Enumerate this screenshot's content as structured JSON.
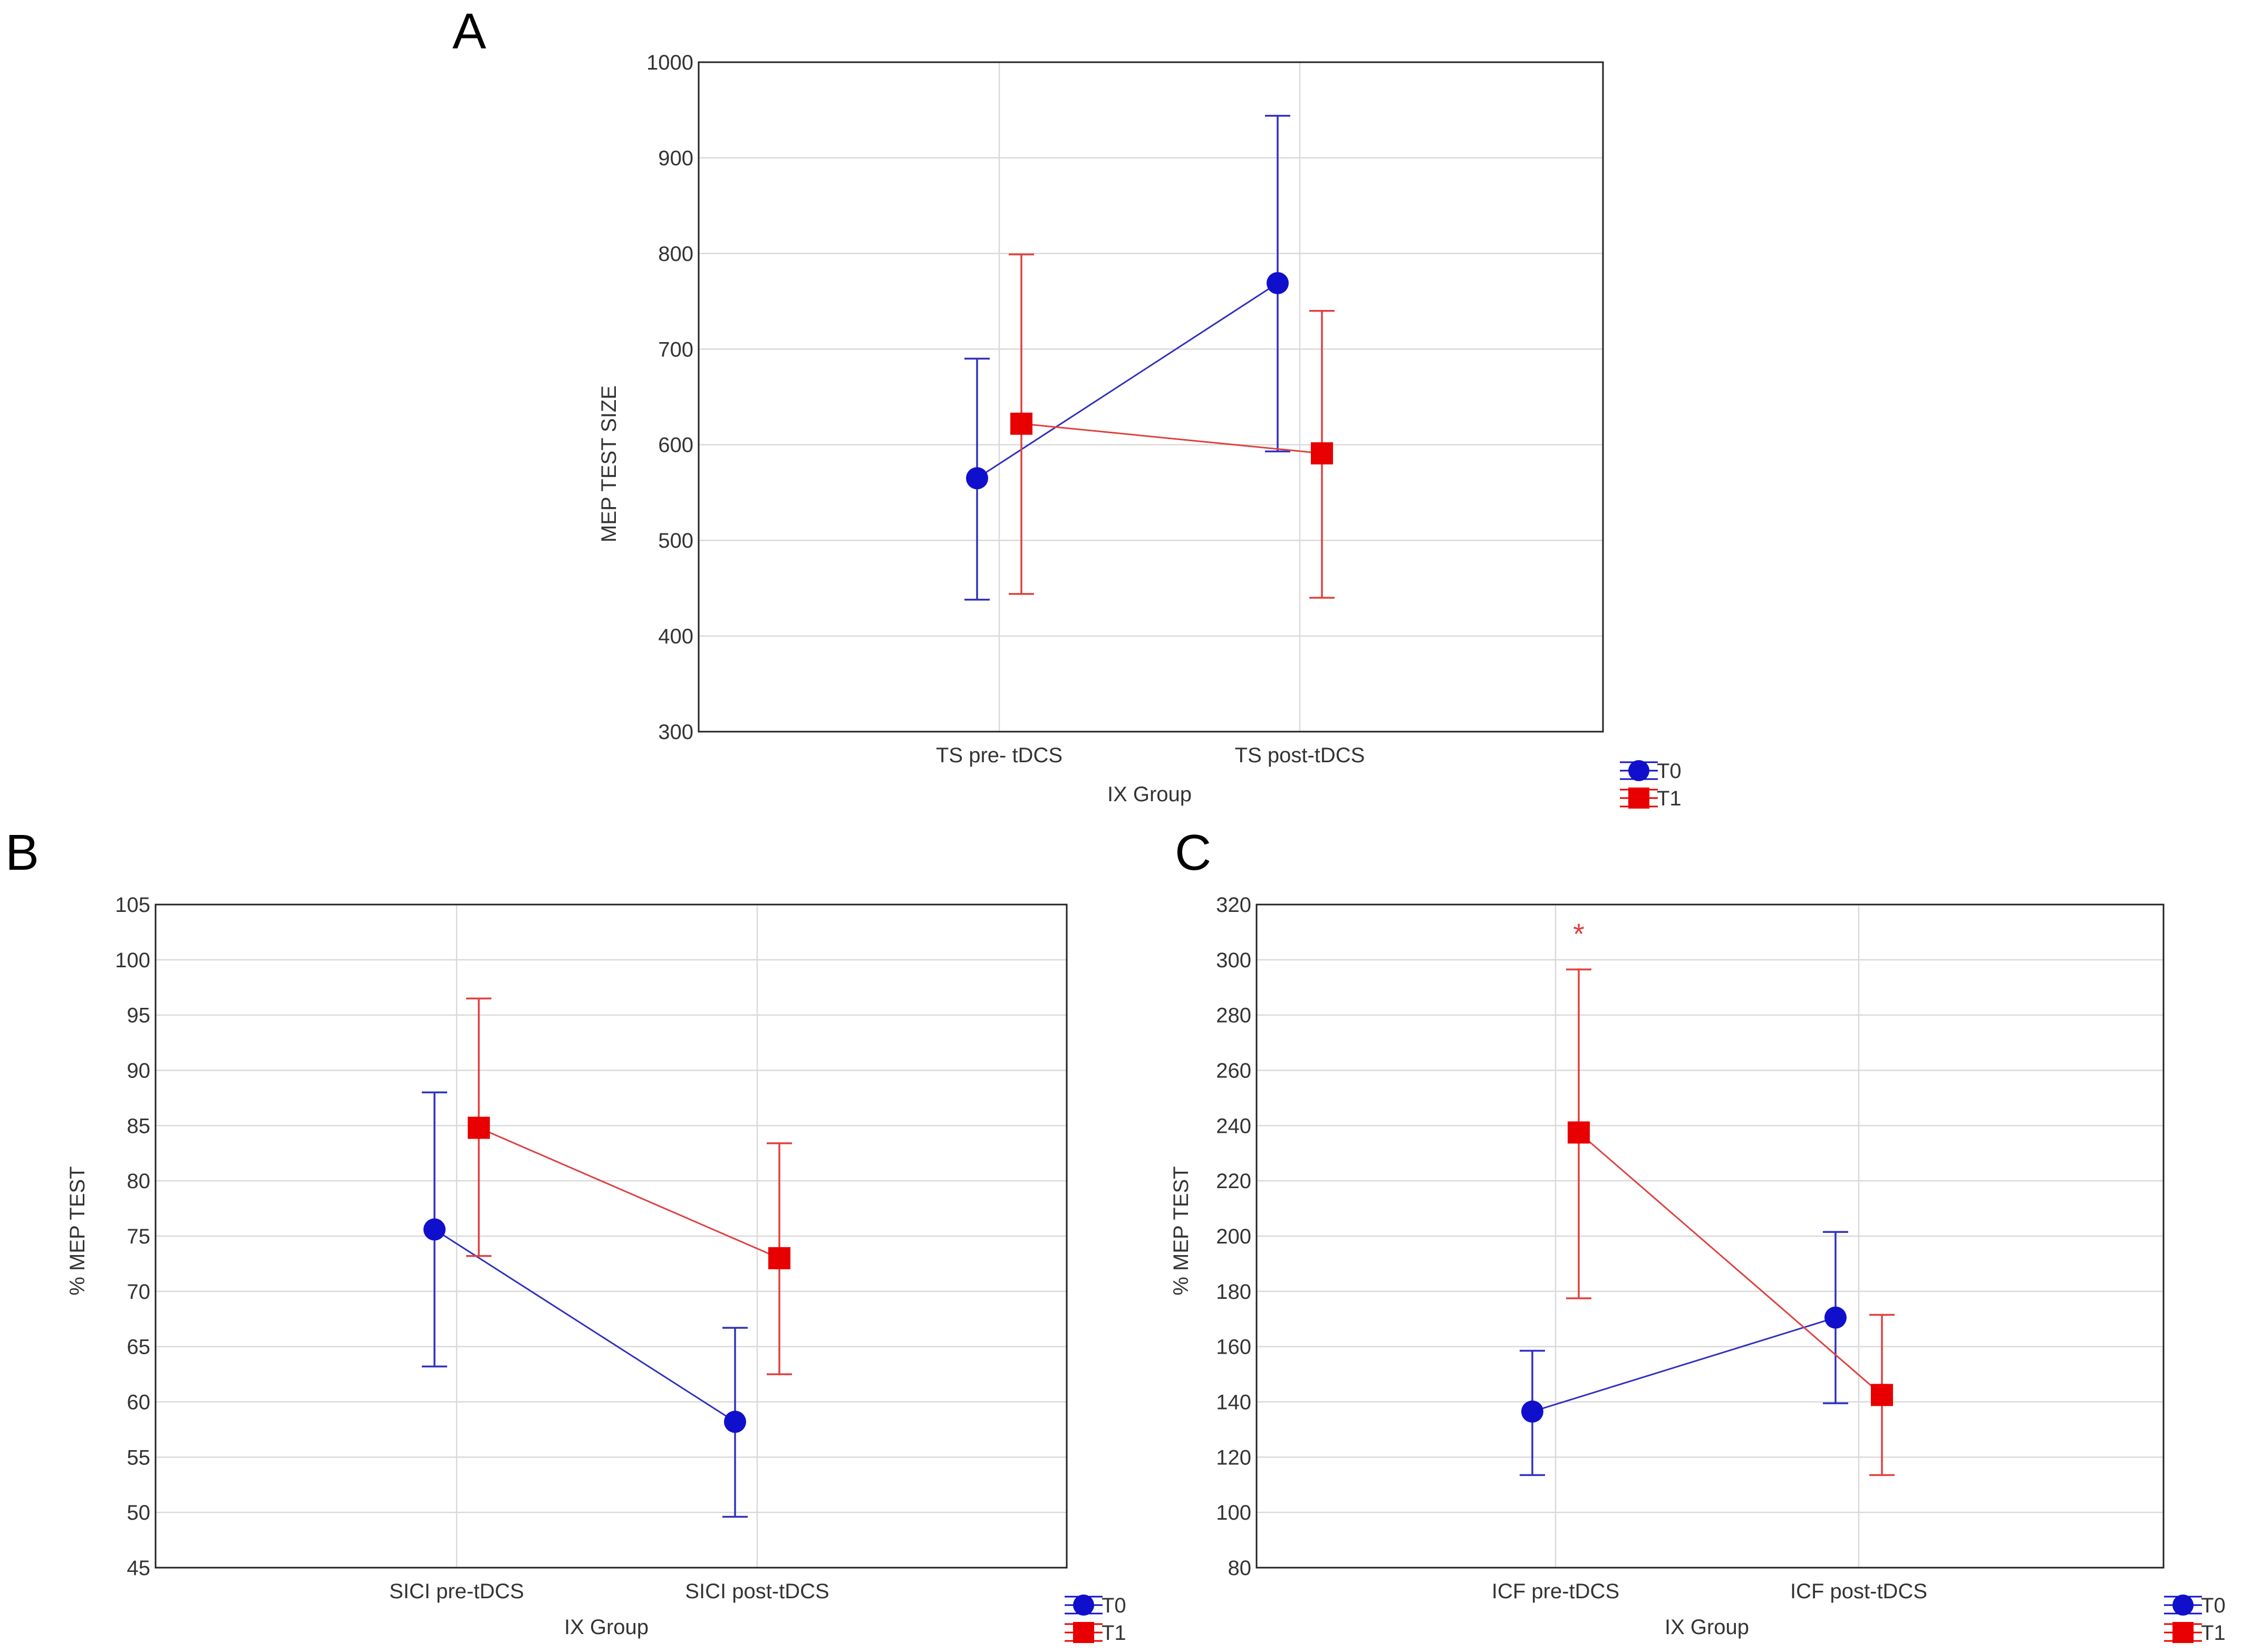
{
  "colors": {
    "T0": "#1010cc",
    "T1": "#e80000",
    "T0_line": "#3030c0",
    "T1_line": "#e04040",
    "star": "#e04040"
  },
  "chart_data": [
    {
      "panel": "A",
      "type": "line",
      "xlabel": "IX Group",
      "ylabel": "MEP TEST SIZE",
      "ylim": [
        300,
        1000
      ],
      "yticks": [
        "300",
        "400",
        "500",
        "600",
        "700",
        "800",
        "900",
        "1000"
      ],
      "categories": [
        "TS pre- tDCS",
        "TS post-tDCS"
      ],
      "series": [
        {
          "name": "T0",
          "marker": "circle",
          "values": [
            565,
            769
          ],
          "err_low": [
            438,
            593
          ],
          "err_high": [
            690,
            944
          ]
        },
        {
          "name": "T1",
          "marker": "square",
          "values": [
            622,
            591
          ],
          "err_low": [
            444,
            440
          ],
          "err_high": [
            799,
            740
          ]
        }
      ],
      "legend": [
        "T0",
        "T1"
      ],
      "annotations": []
    },
    {
      "panel": "B",
      "type": "line",
      "xlabel": "IX Group",
      "ylabel": "% MEP TEST",
      "ylim": [
        45,
        105
      ],
      "yticks": [
        "45",
        "50",
        "55",
        "60",
        "65",
        "70",
        "75",
        "80",
        "85",
        "90",
        "95",
        "100",
        "105"
      ],
      "categories": [
        "SICI pre-tDCS",
        "SICI post-tDCS"
      ],
      "series": [
        {
          "name": "T0",
          "marker": "circle",
          "values": [
            75.6,
            58.2
          ],
          "err_low": [
            63.2,
            49.6
          ],
          "err_high": [
            88.0,
            66.7
          ]
        },
        {
          "name": "T1",
          "marker": "square",
          "values": [
            84.8,
            73.0
          ],
          "err_low": [
            73.2,
            62.5
          ],
          "err_high": [
            96.5,
            83.4
          ]
        }
      ],
      "legend": [
        "T0",
        "T1"
      ],
      "annotations": []
    },
    {
      "panel": "C",
      "type": "line",
      "xlabel": "IX Group",
      "ylabel": "% MEP TEST",
      "ylim": [
        80,
        320
      ],
      "yticks": [
        "80",
        "100",
        "120",
        "140",
        "160",
        "180",
        "200",
        "220",
        "240",
        "260",
        "280",
        "300",
        "320"
      ],
      "categories": [
        "ICF pre-tDCS",
        "ICF post-tDCS"
      ],
      "series": [
        {
          "name": "T0",
          "marker": "circle",
          "values": [
            136.5,
            170.5
          ],
          "err_low": [
            113.5,
            139.5
          ],
          "err_high": [
            158.5,
            201.5
          ]
        },
        {
          "name": "T1",
          "marker": "square",
          "values": [
            237.5,
            142.5
          ],
          "err_low": [
            177.5,
            113.5
          ],
          "err_high": [
            296.5,
            171.5
          ]
        }
      ],
      "legend": [
        "T0",
        "T1"
      ],
      "annotations": [
        {
          "text": "*",
          "series": "T1",
          "category": 0,
          "y": 311
        }
      ]
    }
  ]
}
